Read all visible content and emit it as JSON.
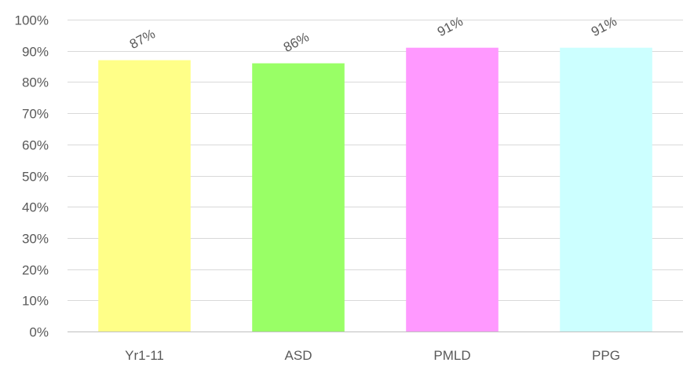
{
  "chart_data": {
    "type": "bar",
    "title": "",
    "xlabel": "",
    "ylabel": "",
    "categories": [
      "Yr1-11",
      "ASD",
      "PMLD",
      "PPG"
    ],
    "values": [
      0.87,
      0.86,
      0.91,
      0.91
    ],
    "data_labels": [
      "87%",
      "86%",
      "91%",
      "91%"
    ],
    "bar_colors": [
      "#FFFF88",
      "#99FF66",
      "#FF99FF",
      "#CCFFFF"
    ],
    "ylim": [
      0,
      1
    ],
    "y_ticks": [
      0,
      0.1,
      0.2,
      0.3,
      0.4,
      0.5,
      0.6,
      0.7,
      0.8,
      0.9,
      1.0
    ],
    "y_tick_labels": [
      "0%",
      "10%",
      "20%",
      "30%",
      "40%",
      "50%",
      "60%",
      "70%",
      "80%",
      "90%",
      "100%"
    ],
    "grid": true,
    "legend": "none"
  }
}
